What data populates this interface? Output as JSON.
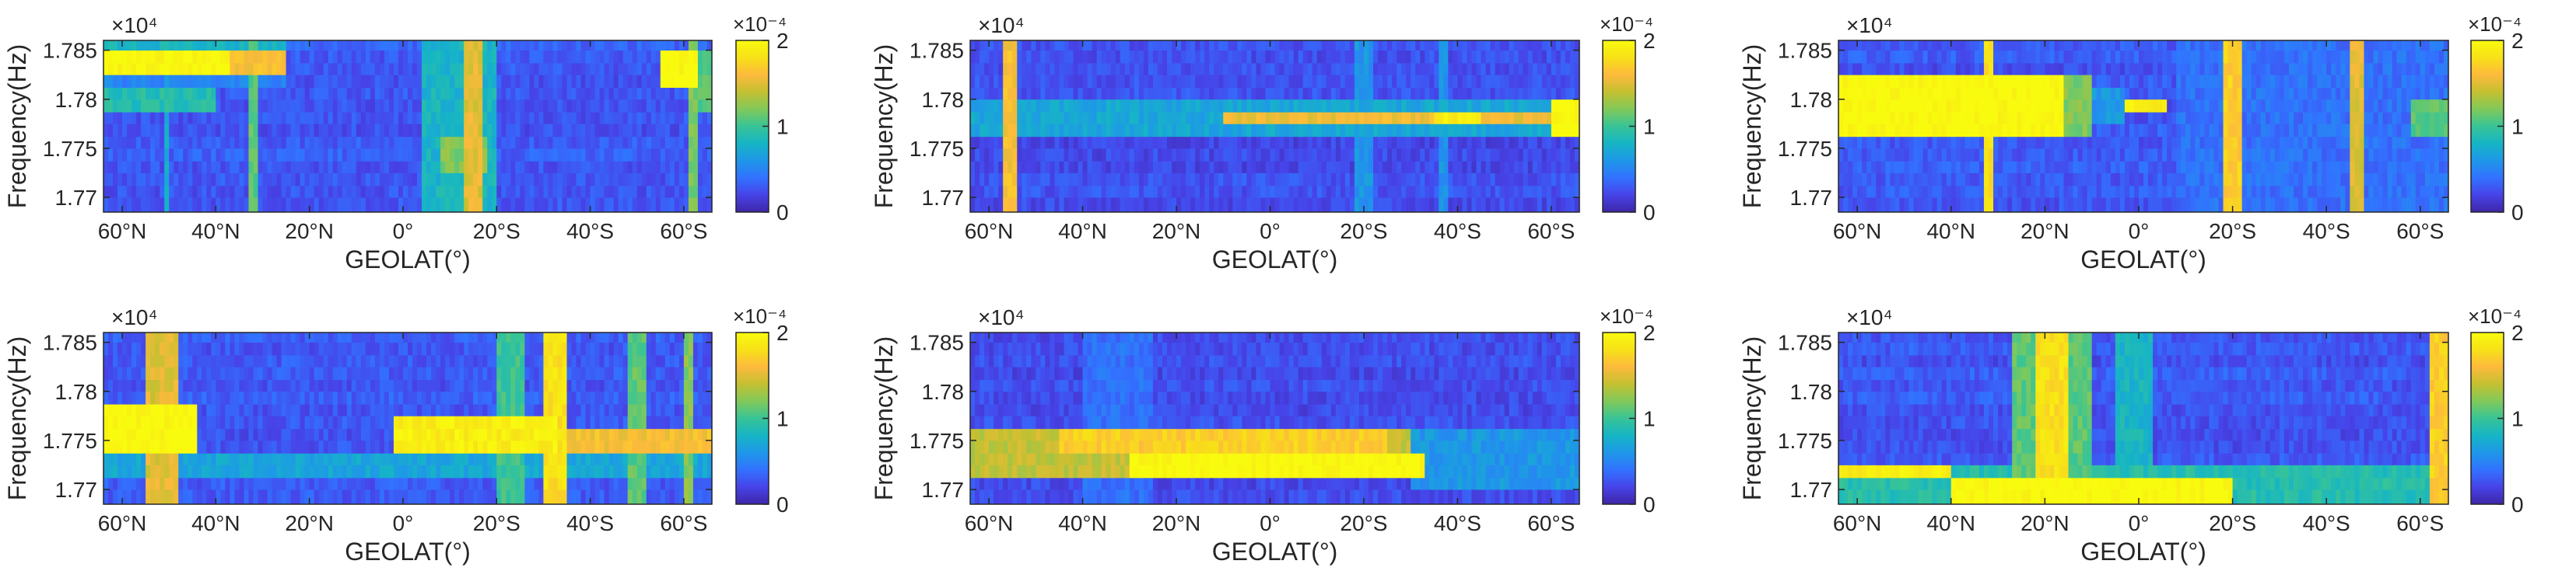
{
  "colorbar": {
    "colormap": "parula",
    "stops": [
      "#3E26A8",
      "#4743E8",
      "#3272FF",
      "#1E97E8",
      "#16B5C5",
      "#38C496",
      "#81C95A",
      "#C4C031",
      "#FDBA3C",
      "#F7E117",
      "#F9FB0E"
    ],
    "tick_labels": [
      "0",
      "1",
      "2"
    ],
    "exponent_label": "×10⁻⁴",
    "range": [
      0,
      0.0002
    ]
  },
  "chart_data": [
    {
      "type": "heatmap",
      "panel": "top-left",
      "xlabel": "GEOLAT(°)",
      "ylabel": "Frequency(Hz)",
      "y_exponent_label": "×10⁴",
      "x_range": [
        64,
        -66
      ],
      "y_range": [
        17685,
        17860
      ],
      "x_ticks": [
        60,
        40,
        20,
        0,
        -20,
        -40,
        -60
      ],
      "x_tick_labels": [
        "60°N",
        "40°N",
        "20°N",
        "0°",
        "20°S",
        "40°S",
        "60°S"
      ],
      "y_ticks": [
        17700,
        17750,
        17800,
        17850
      ],
      "y_tick_labels": [
        "1.77",
        "1.775",
        "1.78",
        "1.785"
      ],
      "band_edges": [
        17685,
        17700,
        17712,
        17725,
        17737,
        17750,
        17762,
        17775,
        17787,
        17800,
        17812,
        17825,
        17837,
        17850,
        17860
      ],
      "background": 0.15,
      "features": [
        {
          "x": [
            64,
            37
          ],
          "y": [
            17825,
            17850
          ],
          "v": 1.0
        },
        {
          "x": [
            37,
            25
          ],
          "y": [
            17825,
            17850
          ],
          "v": 0.8
        },
        {
          "x": [
            64,
            25
          ],
          "y": [
            17850,
            17860
          ],
          "v": 0.4
        },
        {
          "x": [
            64,
            25
          ],
          "y": [
            17812,
            17825
          ],
          "v": 0.25
        },
        {
          "x": [
            64,
            40
          ],
          "y": [
            17787,
            17812
          ],
          "v": 0.45
        },
        {
          "x": [
            -4,
            -20
          ],
          "y": [
            17685,
            17860
          ],
          "v": 0.4
        },
        {
          "x": [
            -13,
            -17
          ],
          "y": [
            17685,
            17860
          ],
          "v": 0.75
        },
        {
          "x": [
            -8,
            -18
          ],
          "y": [
            17725,
            17762
          ],
          "v": 0.6
        },
        {
          "x": [
            -55,
            -63
          ],
          "y": [
            17812,
            17850
          ],
          "v": 1.0
        },
        {
          "x": [
            -62,
            -66
          ],
          "y": [
            17787,
            17850
          ],
          "v": 0.55
        },
        {
          "x": [
            33,
            31
          ],
          "y": [
            17685,
            17860
          ],
          "v": 0.55
        },
        {
          "x": [
            51,
            50
          ],
          "y": [
            17685,
            17860
          ],
          "v": 0.35
        },
        {
          "x": [
            -61,
            -63
          ],
          "y": [
            17685,
            17860
          ],
          "v": 0.6
        }
      ]
    },
    {
      "type": "heatmap",
      "panel": "top-middle",
      "xlabel": "GEOLAT(°)",
      "ylabel": "Frequency(Hz)",
      "y_exponent_label": "×10⁴",
      "x_range": [
        64,
        -66
      ],
      "y_range": [
        17685,
        17860
      ],
      "x_ticks": [
        60,
        40,
        20,
        0,
        -20,
        -40,
        -60
      ],
      "x_tick_labels": [
        "60°N",
        "40°N",
        "20°N",
        "0°",
        "20°S",
        "40°S",
        "60°S"
      ],
      "y_ticks": [
        17700,
        17750,
        17800,
        17850
      ],
      "y_tick_labels": [
        "1.77",
        "1.775",
        "1.78",
        "1.785"
      ],
      "band_edges": [
        17685,
        17700,
        17712,
        17725,
        17737,
        17750,
        17762,
        17775,
        17787,
        17800,
        17812,
        17825,
        17837,
        17850,
        17860
      ],
      "background": 0.12,
      "features": [
        {
          "x": [
            64,
            -66
          ],
          "y": [
            17762,
            17800
          ],
          "v": 0.35
        },
        {
          "x": [
            10,
            -66
          ],
          "y": [
            17775,
            17787
          ],
          "v": 0.78
        },
        {
          "x": [
            -35,
            -45
          ],
          "y": [
            17775,
            17787
          ],
          "v": 0.95
        },
        {
          "x": [
            -60,
            -66
          ],
          "y": [
            17762,
            17800
          ],
          "v": 1.0
        },
        {
          "x": [
            57,
            54
          ],
          "y": [
            17685,
            17860
          ],
          "v": 0.8
        },
        {
          "x": [
            -18,
            -22
          ],
          "y": [
            17685,
            17860
          ],
          "v": 0.3
        },
        {
          "x": [
            -36,
            -38
          ],
          "y": [
            17685,
            17860
          ],
          "v": 0.3
        }
      ]
    },
    {
      "type": "heatmap",
      "panel": "top-right",
      "xlabel": "GEOLAT(°)",
      "ylabel": "Frequency(Hz)",
      "y_exponent_label": "×10⁴",
      "x_range": [
        64,
        -66
      ],
      "y_range": [
        17685,
        17860
      ],
      "x_ticks": [
        60,
        40,
        20,
        0,
        -20,
        -40,
        -60
      ],
      "x_tick_labels": [
        "60°N",
        "40°N",
        "20°N",
        "0°",
        "20°S",
        "40°S",
        "60°S"
      ],
      "y_ticks": [
        17700,
        17750,
        17800,
        17850
      ],
      "y_tick_labels": [
        "1.77",
        "1.775",
        "1.78",
        "1.785"
      ],
      "band_edges": [
        17685,
        17700,
        17712,
        17725,
        17737,
        17750,
        17762,
        17775,
        17787,
        17800,
        17812,
        17825,
        17837,
        17850,
        17860
      ],
      "background": 0.14,
      "features": [
        {
          "x": [
            64,
            16
          ],
          "y": [
            17762,
            17825
          ],
          "v": 1.0
        },
        {
          "x": [
            16,
            10
          ],
          "y": [
            17762,
            17825
          ],
          "v": 0.6
        },
        {
          "x": [
            10,
            3
          ],
          "y": [
            17775,
            17812
          ],
          "v": 0.3
        },
        {
          "x": [
            3,
            -6
          ],
          "y": [
            17787,
            17800
          ],
          "v": 0.95
        },
        {
          "x": [
            -8,
            -66
          ],
          "y": [
            17685,
            17860
          ],
          "v": 0.2
        },
        {
          "x": [
            -18,
            -22
          ],
          "y": [
            17685,
            17860
          ],
          "v": 0.85
        },
        {
          "x": [
            -45,
            -48
          ],
          "y": [
            17685,
            17860
          ],
          "v": 0.75
        },
        {
          "x": [
            -58,
            -66
          ],
          "y": [
            17762,
            17800
          ],
          "v": 0.55
        },
        {
          "x": [
            33,
            31
          ],
          "y": [
            17685,
            17860
          ],
          "v": 0.9
        }
      ]
    },
    {
      "type": "heatmap",
      "panel": "bottom-left",
      "xlabel": "GEOLAT(°)",
      "ylabel": "Frequency(Hz)",
      "y_exponent_label": "×10⁴",
      "x_range": [
        64,
        -66
      ],
      "y_range": [
        17685,
        17860
      ],
      "x_ticks": [
        60,
        40,
        20,
        0,
        -20,
        -40,
        -60
      ],
      "x_tick_labels": [
        "60°N",
        "40°N",
        "20°N",
        "0°",
        "20°S",
        "40°S",
        "60°S"
      ],
      "y_ticks": [
        17700,
        17750,
        17800,
        17850
      ],
      "y_tick_labels": [
        "1.77",
        "1.775",
        "1.78",
        "1.785"
      ],
      "band_edges": [
        17685,
        17700,
        17712,
        17725,
        17737,
        17750,
        17762,
        17775,
        17787,
        17800,
        17812,
        17825,
        17837,
        17850,
        17860
      ],
      "background": 0.15,
      "features": [
        {
          "x": [
            64,
            44
          ],
          "y": [
            17737,
            17787
          ],
          "v": 1.0
        },
        {
          "x": [
            64,
            -66
          ],
          "y": [
            17712,
            17737
          ],
          "v": 0.35
        },
        {
          "x": [
            2,
            -33
          ],
          "y": [
            17737,
            17775
          ],
          "v": 0.95
        },
        {
          "x": [
            -33,
            -66
          ],
          "y": [
            17737,
            17762
          ],
          "v": 0.8
        },
        {
          "x": [
            55,
            48
          ],
          "y": [
            17685,
            17860
          ],
          "v": 0.75
        },
        {
          "x": [
            -20,
            -26
          ],
          "y": [
            17685,
            17860
          ],
          "v": 0.5
        },
        {
          "x": [
            -30,
            -35
          ],
          "y": [
            17685,
            17860
          ],
          "v": 0.9
        },
        {
          "x": [
            -48,
            -52
          ],
          "y": [
            17685,
            17860
          ],
          "v": 0.55
        },
        {
          "x": [
            -60,
            -62
          ],
          "y": [
            17685,
            17860
          ],
          "v": 0.6
        }
      ]
    },
    {
      "type": "heatmap",
      "panel": "bottom-middle",
      "xlabel": "GEOLAT(°)",
      "ylabel": "Frequency(Hz)",
      "y_exponent_label": "×10⁴",
      "x_range": [
        64,
        -66
      ],
      "y_range": [
        17685,
        17860
      ],
      "x_ticks": [
        60,
        40,
        20,
        0,
        -20,
        -40,
        -60
      ],
      "x_tick_labels": [
        "60°N",
        "40°N",
        "20°N",
        "0°",
        "20°S",
        "40°S",
        "60°S"
      ],
      "y_ticks": [
        17700,
        17750,
        17800,
        17850
      ],
      "y_tick_labels": [
        "1.77",
        "1.775",
        "1.78",
        "1.785"
      ],
      "band_edges": [
        17685,
        17700,
        17712,
        17725,
        17737,
        17750,
        17762,
        17775,
        17787,
        17800,
        17812,
        17825,
        17837,
        17850,
        17860
      ],
      "background": 0.12,
      "features": [
        {
          "x": [
            64,
            -30
          ],
          "y": [
            17712,
            17762
          ],
          "v": 0.7
        },
        {
          "x": [
            45,
            -25
          ],
          "y": [
            17737,
            17762
          ],
          "v": 0.85
        },
        {
          "x": [
            30,
            -33
          ],
          "y": [
            17712,
            17737
          ],
          "v": 1.0
        },
        {
          "x": [
            -30,
            -66
          ],
          "y": [
            17700,
            17762
          ],
          "v": 0.3
        },
        {
          "x": [
            40,
            25
          ],
          "y": [
            17685,
            17860
          ],
          "v": 0.2
        },
        {
          "x": [
            -55,
            -57
          ],
          "y": [
            17685,
            17762
          ],
          "v": 0.05
        }
      ]
    },
    {
      "type": "heatmap",
      "panel": "bottom-right",
      "xlabel": "GEOLAT(°)",
      "ylabel": "Frequency(Hz)",
      "y_exponent_label": "×10⁴",
      "x_range": [
        64,
        -66
      ],
      "y_range": [
        17685,
        17860
      ],
      "x_ticks": [
        60,
        40,
        20,
        0,
        -20,
        -40,
        -60
      ],
      "x_tick_labels": [
        "60°N",
        "40°N",
        "20°N",
        "0°",
        "20°S",
        "40°S",
        "60°S"
      ],
      "y_ticks": [
        17700,
        17750,
        17800,
        17850
      ],
      "y_tick_labels": [
        "1.77",
        "1.775",
        "1.78",
        "1.785"
      ],
      "band_edges": [
        17685,
        17700,
        17712,
        17725,
        17737,
        17750,
        17762,
        17775,
        17787,
        17800,
        17812,
        17825,
        17837,
        17850,
        17860
      ],
      "background": 0.14,
      "features": [
        {
          "x": [
            64,
            -66
          ],
          "y": [
            17685,
            17725
          ],
          "v": 0.45
        },
        {
          "x": [
            64,
            40
          ],
          "y": [
            17712,
            17725
          ],
          "v": 0.95
        },
        {
          "x": [
            40,
            -20
          ],
          "y": [
            17685,
            17712
          ],
          "v": 1.0
        },
        {
          "x": [
            27,
            10
          ],
          "y": [
            17685,
            17860
          ],
          "v": 0.55
        },
        {
          "x": [
            22,
            15
          ],
          "y": [
            17685,
            17860
          ],
          "v": 0.9
        },
        {
          "x": [
            5,
            -3
          ],
          "y": [
            17685,
            17860
          ],
          "v": 0.4
        },
        {
          "x": [
            -62,
            -66
          ],
          "y": [
            17685,
            17860
          ],
          "v": 0.85
        }
      ]
    }
  ]
}
